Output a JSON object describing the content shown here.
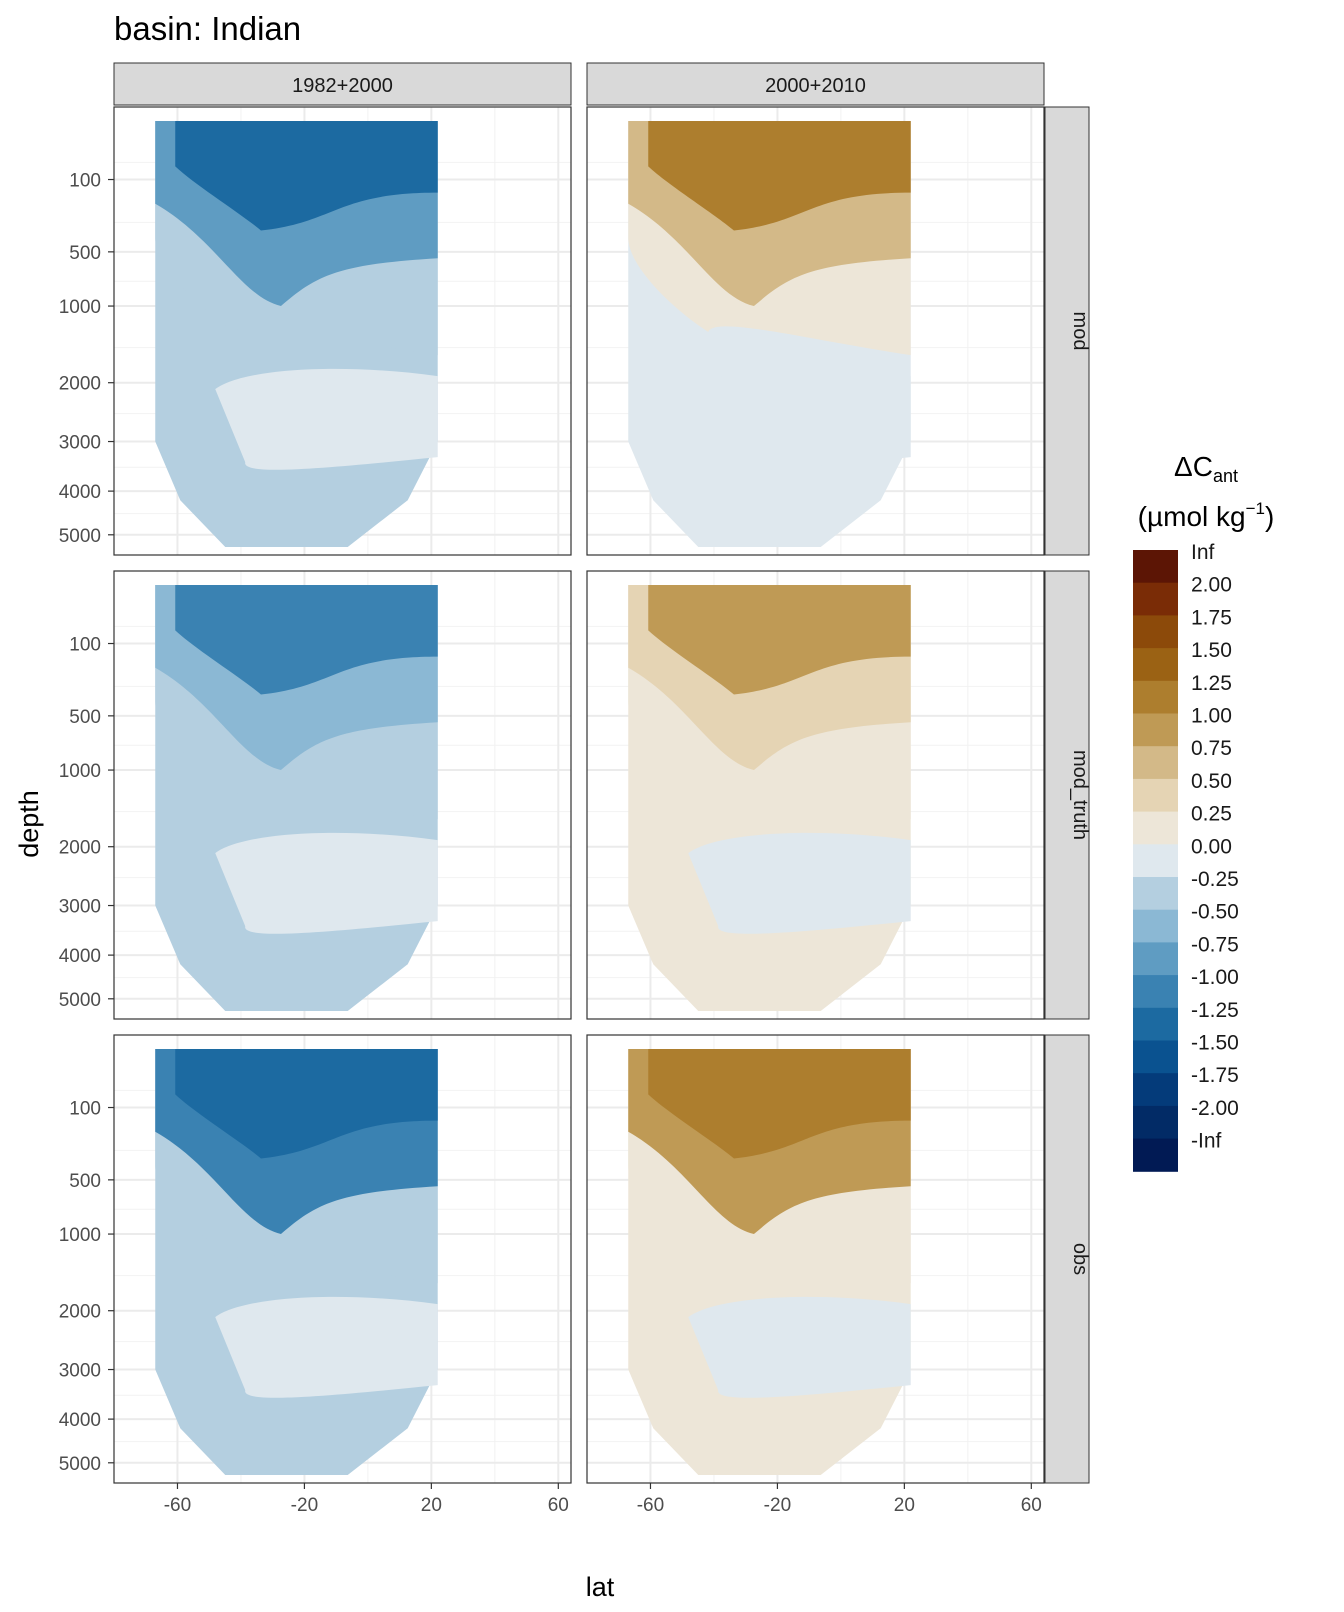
{
  "chart_data": {
    "type": "heatmap",
    "title": "basin: Indian",
    "xlabel": "lat",
    "ylabel": "depth",
    "x_ticks": [
      -60,
      -20,
      20,
      60
    ],
    "x_tick_labels": [
      "-60",
      "-20",
      "20",
      "60"
    ],
    "xlim": [
      -80,
      64
    ],
    "y_ticks": [
      100,
      500,
      1000,
      2000,
      3000,
      4000,
      5000
    ],
    "y_tick_labels": [
      "100",
      "500",
      "1000",
      "2000",
      "3000",
      "4000",
      "5000"
    ],
    "y_scale": "reversed sqrt",
    "ylim": [
      0,
      5500
    ],
    "grid": true,
    "facet_columns": [
      "1982+2000",
      "2000+2010"
    ],
    "facet_rows": [
      "mod",
      "mod_truth",
      "obs"
    ],
    "legend": {
      "title": "ΔC",
      "title_sub": "ant",
      "unit_prefix": "(µmol kg",
      "unit_sup": "−1",
      "unit_suffix": ")",
      "placement": "right",
      "labels": [
        "Inf",
        "2.00",
        "1.75",
        "1.50",
        "1.25",
        "1.00",
        "0.75",
        "0.50",
        "0.25",
        "0.00",
        "-0.25",
        "-0.50",
        "-0.75",
        "-1.00",
        "-1.25",
        "-1.50",
        "-1.75",
        "-2.00",
        "-Inf"
      ],
      "colors": [
        "#5c1505",
        "#7a2c06",
        "#8c4a0a",
        "#9b6214",
        "#ad7e2e",
        "#bf9a55",
        "#d3b988",
        "#e5d4b4",
        "#ede6d8",
        "#dfe8ee",
        "#b4cfe0",
        "#8bb8d4",
        "#5f9cc2",
        "#3a82b2",
        "#1c6aa1",
        "#0a5290",
        "#043b7a",
        "#022b66",
        "#011a54"
      ]
    },
    "panels": [
      {
        "col": 0,
        "row": 0,
        "lat_range": [
          -67,
          22
        ],
        "surface": -1.25,
        "upper": -0.75,
        "intermediate": -0.25,
        "deep": 0.0,
        "bottom": -0.25
      },
      {
        "col": 1,
        "row": 0,
        "lat_range": [
          -67,
          22
        ],
        "surface": 1.25,
        "upper": 0.75,
        "intermediate": 0.25,
        "deep": 0.0,
        "bottom": 0.0
      },
      {
        "col": 0,
        "row": 1,
        "lat_range": [
          -67,
          22
        ],
        "surface": -1.0,
        "upper": -0.5,
        "intermediate": -0.25,
        "deep": 0.0,
        "bottom": -0.25
      },
      {
        "col": 1,
        "row": 1,
        "lat_range": [
          -67,
          22
        ],
        "surface": 1.0,
        "upper": 0.5,
        "intermediate": 0.25,
        "deep": 0.0,
        "bottom": 0.25
      },
      {
        "col": 0,
        "row": 2,
        "lat_range": [
          -67,
          22
        ],
        "surface": -1.25,
        "upper": -1.0,
        "intermediate": -0.25,
        "deep": 0.0,
        "bottom": -0.25
      },
      {
        "col": 1,
        "row": 2,
        "lat_range": [
          -67,
          22
        ],
        "surface": 1.25,
        "upper": 1.0,
        "intermediate": 0.25,
        "deep": 0.0,
        "bottom": 0.25
      }
    ]
  }
}
